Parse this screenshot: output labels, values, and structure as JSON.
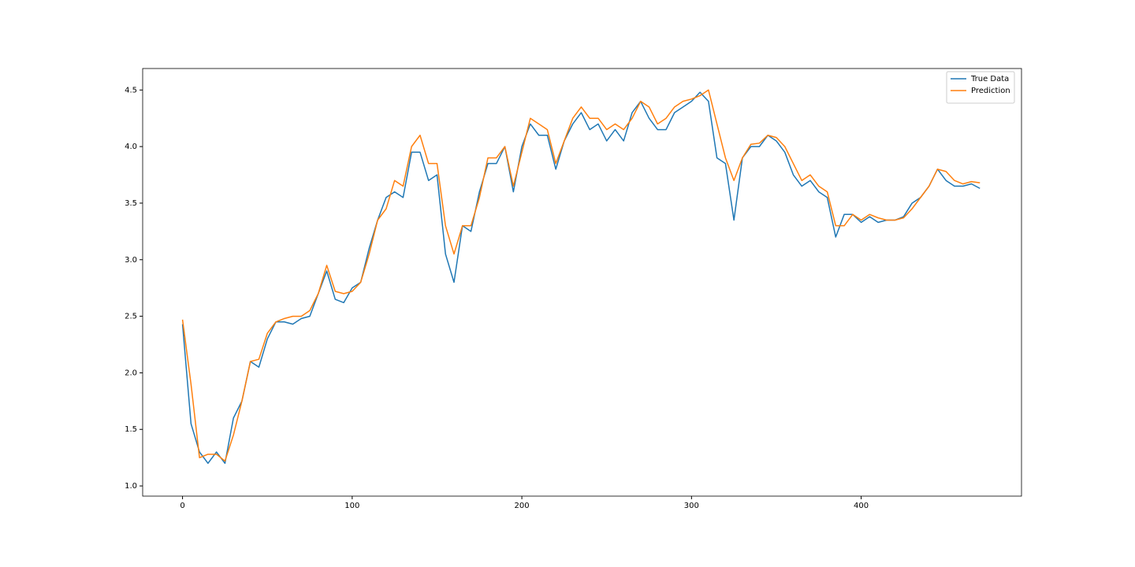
{
  "chart_data": {
    "type": "line",
    "x": [
      0,
      5,
      10,
      15,
      20,
      25,
      30,
      35,
      40,
      45,
      50,
      55,
      60,
      65,
      70,
      75,
      80,
      85,
      90,
      95,
      100,
      105,
      110,
      115,
      120,
      125,
      130,
      135,
      140,
      145,
      150,
      155,
      160,
      165,
      170,
      175,
      180,
      185,
      190,
      195,
      200,
      205,
      210,
      215,
      220,
      225,
      230,
      235,
      240,
      245,
      250,
      255,
      260,
      265,
      270,
      275,
      280,
      285,
      290,
      295,
      300,
      305,
      310,
      315,
      320,
      325,
      330,
      335,
      340,
      345,
      350,
      355,
      360,
      365,
      370,
      375,
      380,
      385,
      390,
      395,
      400,
      405,
      410,
      415,
      420,
      425,
      430,
      435,
      440,
      445,
      450,
      455,
      460,
      465,
      470
    ],
    "series": [
      {
        "name": "True Data",
        "color": "#1f77b4",
        "values": [
          2.43,
          1.55,
          1.3,
          1.2,
          1.3,
          1.2,
          1.6,
          1.75,
          2.1,
          2.05,
          2.3,
          2.45,
          2.45,
          2.43,
          2.48,
          2.5,
          2.7,
          2.9,
          2.65,
          2.62,
          2.75,
          2.8,
          3.1,
          3.35,
          3.55,
          3.6,
          3.55,
          3.95,
          3.95,
          3.7,
          3.75,
          3.05,
          2.8,
          3.3,
          3.25,
          3.6,
          3.85,
          3.85,
          4.0,
          3.6,
          4.0,
          4.2,
          4.1,
          4.1,
          3.8,
          4.05,
          4.2,
          4.3,
          4.15,
          4.2,
          4.05,
          4.15,
          4.05,
          4.3,
          4.4,
          4.25,
          4.15,
          4.15,
          4.3,
          4.35,
          4.4,
          4.48,
          4.4,
          3.9,
          3.85,
          3.35,
          3.9,
          4.0,
          4.0,
          4.1,
          4.05,
          3.95,
          3.75,
          3.65,
          3.7,
          3.6,
          3.55,
          3.2,
          3.4,
          3.4,
          3.33,
          3.38,
          3.33,
          3.35,
          3.35,
          3.38,
          3.5,
          3.55,
          3.65,
          3.8,
          3.7,
          3.65,
          3.65,
          3.67,
          3.63
        ]
      },
      {
        "name": "Prediction",
        "color": "#ff7f0e",
        "values": [
          2.47,
          1.9,
          1.25,
          1.28,
          1.28,
          1.22,
          1.45,
          1.75,
          2.1,
          2.12,
          2.35,
          2.45,
          2.48,
          2.5,
          2.5,
          2.55,
          2.7,
          2.95,
          2.72,
          2.7,
          2.72,
          2.8,
          3.05,
          3.35,
          3.45,
          3.7,
          3.65,
          4.0,
          4.1,
          3.85,
          3.85,
          3.3,
          3.05,
          3.3,
          3.3,
          3.55,
          3.9,
          3.9,
          4.0,
          3.65,
          3.95,
          4.25,
          4.2,
          4.15,
          3.85,
          4.05,
          4.25,
          4.35,
          4.25,
          4.25,
          4.15,
          4.2,
          4.15,
          4.25,
          4.4,
          4.35,
          4.2,
          4.25,
          4.35,
          4.4,
          4.42,
          4.45,
          4.5,
          4.2,
          3.9,
          3.7,
          3.9,
          4.02,
          4.03,
          4.1,
          4.08,
          4.0,
          3.85,
          3.7,
          3.75,
          3.65,
          3.6,
          3.3,
          3.3,
          3.4,
          3.35,
          3.4,
          3.37,
          3.35,
          3.35,
          3.37,
          3.45,
          3.55,
          3.65,
          3.8,
          3.78,
          3.7,
          3.67,
          3.69,
          3.68
        ]
      }
    ],
    "xlim": [
      -23.5,
      494.5
    ],
    "xticks": [
      0,
      100,
      200,
      300,
      400
    ],
    "ylim": [
      0.91,
      4.69
    ],
    "yticks": [
      {
        "value": 1,
        "label": "1.0"
      },
      1.5,
      {
        "value": 2,
        "label": "2.0"
      },
      2.5,
      {
        "value": 3,
        "label": "3.0"
      },
      3.5,
      {
        "value": 4,
        "label": "4.0"
      },
      4.5
    ],
    "grid": false,
    "legend": "upper right"
  }
}
